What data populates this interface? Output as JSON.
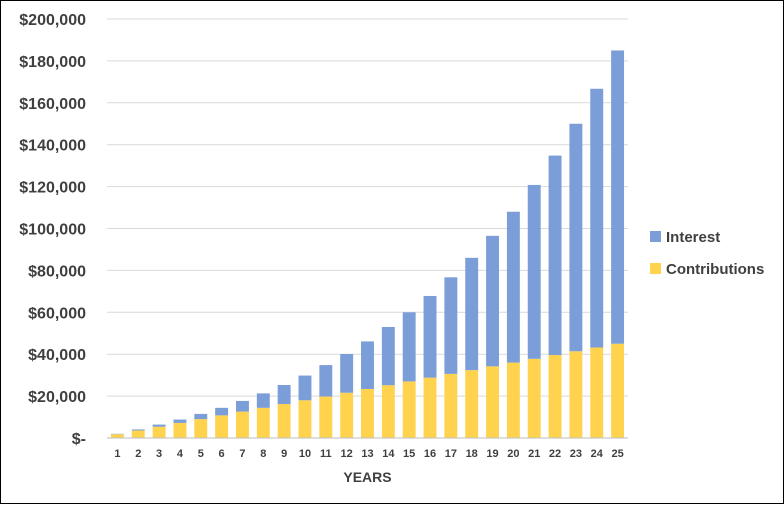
{
  "chart_data": {
    "type": "bar",
    "stacked": true,
    "title": "",
    "xlabel": "YEARS",
    "ylabel": "",
    "ylim": [
      0,
      200000
    ],
    "y_ticks": [
      0,
      20000,
      40000,
      60000,
      80000,
      100000,
      120000,
      140000,
      160000,
      180000,
      200000
    ],
    "y_tick_labels": [
      "$-",
      "$20,000",
      "$40,000",
      "$60,000",
      "$80,000",
      "$100,000",
      "$120,000",
      "$140,000",
      "$160,000",
      "$180,000",
      "$200,000"
    ],
    "grid": true,
    "legend_position": "right",
    "categories": [
      "1",
      "2",
      "3",
      "4",
      "5",
      "6",
      "7",
      "8",
      "9",
      "10",
      "11",
      "12",
      "13",
      "14",
      "15",
      "16",
      "17",
      "18",
      "19",
      "20",
      "21",
      "22",
      "23",
      "24",
      "25"
    ],
    "series": [
      {
        "name": "Contributions",
        "color": "#ffd34d",
        "values": [
          1800,
          3600,
          5400,
          7200,
          9000,
          10800,
          12600,
          14400,
          16200,
          18000,
          19800,
          21600,
          23400,
          25200,
          27000,
          28800,
          30600,
          32400,
          34200,
          36000,
          37800,
          39600,
          41400,
          43200,
          45000
        ]
      },
      {
        "name": "Interest",
        "color": "#7c9ed8",
        "values": [
          200,
          500,
          1000,
          1600,
          2500,
          3600,
          5100,
          6900,
          9100,
          11800,
          15000,
          18500,
          22700,
          27800,
          33000,
          39000,
          46100,
          53600,
          62300,
          72000,
          83000,
          95200,
          108600,
          123500,
          140000
        ]
      }
    ]
  }
}
